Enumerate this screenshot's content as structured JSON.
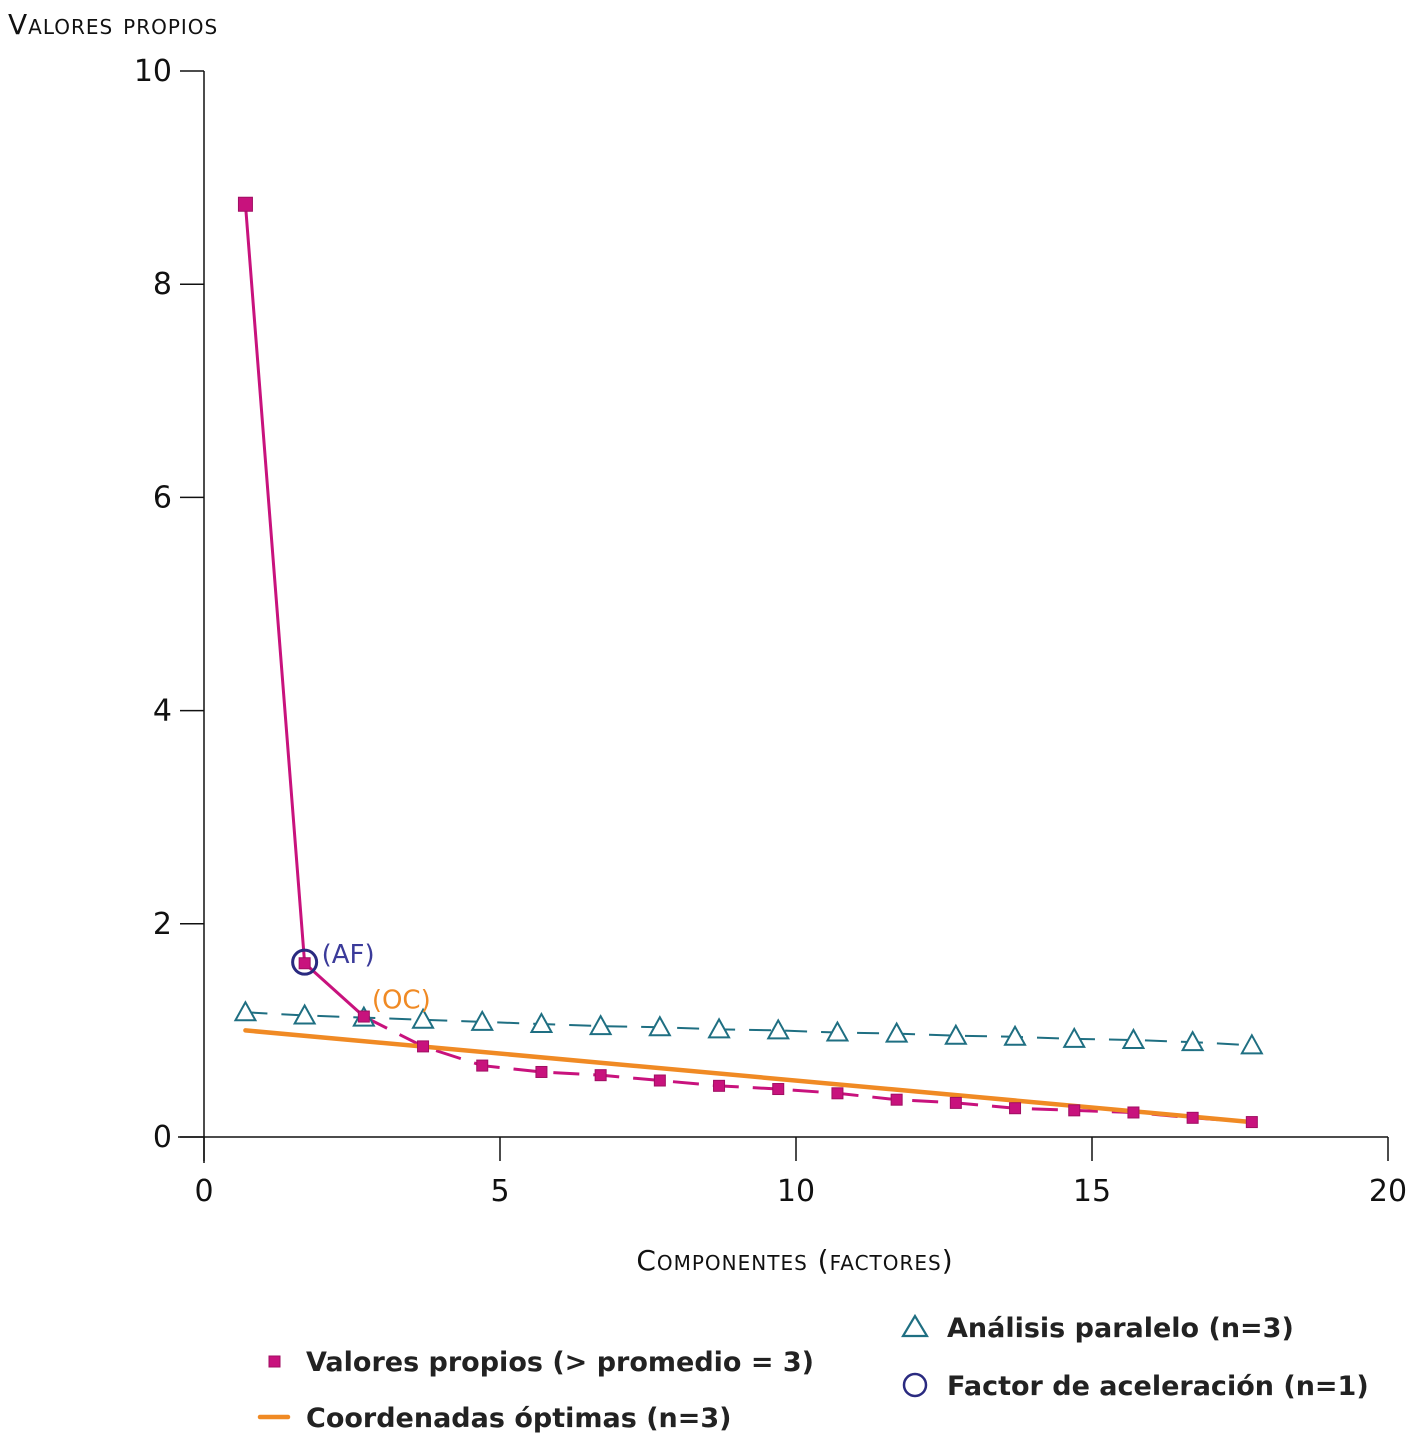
{
  "chart_data": {
    "type": "line",
    "ylabel": "Valores propios",
    "xlabel": "Componentes (factores)",
    "xlim": [
      0,
      20
    ],
    "ylim": [
      0,
      10
    ],
    "xticks": [
      0,
      5,
      10,
      15,
      20
    ],
    "yticks": [
      0,
      2,
      4,
      6,
      8,
      10
    ],
    "grid": false,
    "legend_position": "bottom",
    "series": [
      {
        "name": "Valores propios (> promedio = 3)",
        "marker": "square",
        "color": "#c8127d",
        "x": [
          0.7,
          1.7,
          2.7,
          3.7,
          4.7,
          5.7,
          6.7,
          7.7,
          8.7,
          9.7,
          10.7,
          11.7,
          12.7,
          13.7,
          14.7,
          15.7,
          16.7,
          17.7
        ],
        "y": [
          8.75,
          1.63,
          1.13,
          0.85,
          0.67,
          0.61,
          0.58,
          0.53,
          0.48,
          0.45,
          0.41,
          0.35,
          0.32,
          0.27,
          0.25,
          0.23,
          0.18,
          0.14
        ]
      },
      {
        "name": "Análisis paralelo (n=3)",
        "marker": "triangle",
        "color": "#1f6f82",
        "x": [
          0.7,
          1.7,
          2.7,
          3.7,
          4.7,
          5.7,
          6.7,
          7.7,
          8.7,
          9.7,
          10.7,
          11.7,
          12.7,
          13.7,
          14.7,
          15.7,
          16.7,
          17.7
        ],
        "y": [
          1.17,
          1.14,
          1.12,
          1.1,
          1.08,
          1.06,
          1.04,
          1.03,
          1.01,
          1.0,
          0.98,
          0.97,
          0.95,
          0.94,
          0.92,
          0.91,
          0.89,
          0.86
        ]
      },
      {
        "name": "Coordenadas óptimas (n=3)",
        "marker": "none",
        "color": "#f08a24",
        "x": [
          0.7,
          17.7
        ],
        "y": [
          1.0,
          0.14
        ]
      },
      {
        "name": "Factor de aceleración (n=1)",
        "marker": "circle",
        "color": "#2a2a80",
        "x": [
          1.7
        ],
        "y": [
          1.64
        ]
      }
    ],
    "annotations": [
      {
        "text": "(AF)",
        "x": 1.7,
        "y": 1.64,
        "color": "#3b3b9a"
      },
      {
        "text": "(OC)",
        "x": 2.7,
        "y": 1.13,
        "color": "#f08a24"
      }
    ],
    "legend": {
      "items": [
        {
          "label": "Valores propios (> promedio = 3)",
          "symbol": "square",
          "color": "#c8127d"
        },
        {
          "label": "Coordenadas óptimas (n=3)",
          "symbol": "line",
          "color": "#f08a24"
        },
        {
          "label": "Análisis paralelo (n=3)",
          "symbol": "triangle",
          "color": "#1f6f82"
        },
        {
          "label": "Factor de aceleración (n=1)",
          "symbol": "circle",
          "color": "#2a2a80"
        }
      ]
    }
  }
}
